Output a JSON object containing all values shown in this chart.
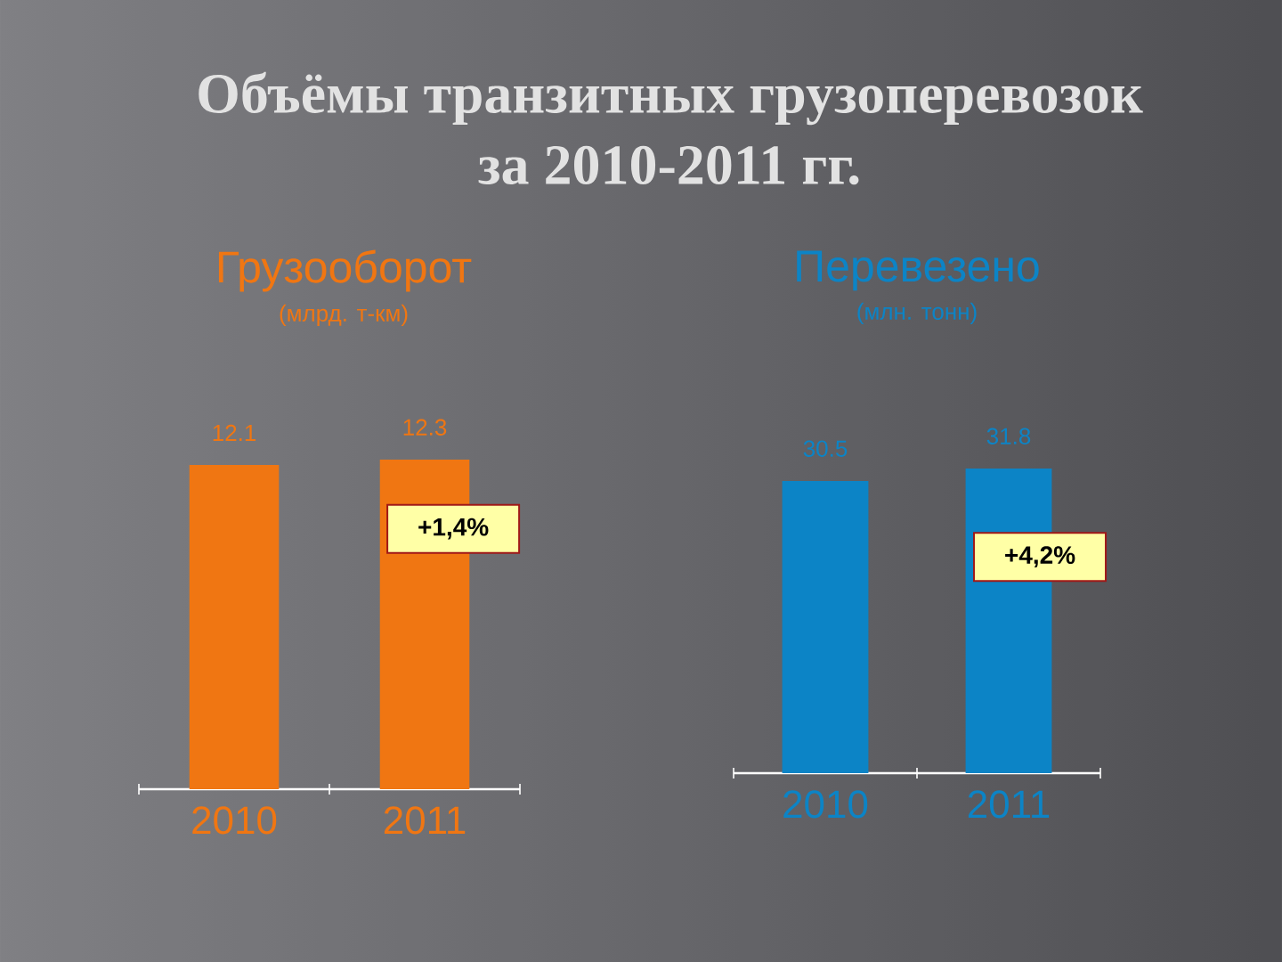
{
  "chart_data": [
    {
      "type": "other",
      "title": "Объёмы транзитных грузоперевозок за 2010-2011 гг."
    },
    {
      "type": "bar",
      "title": "Грузооборот",
      "subtitle": "(млрд. т-км)",
      "categories": [
        "2010",
        "2011"
      ],
      "values": [
        12.1,
        12.3
      ],
      "color": "#f07612",
      "data_labels": true,
      "tick_labels": "x",
      "annotations": [
        "+1,4%"
      ]
    },
    {
      "type": "bar",
      "title": "Перевезено",
      "subtitle": "(млн. тонн)",
      "categories": [
        "2010",
        "2011"
      ],
      "values": [
        30.5,
        31.8
      ],
      "color": "#0c84c6",
      "data_labels": true,
      "tick_labels": "x",
      "annotations": [
        "+4,2%"
      ]
    }
  ]
}
